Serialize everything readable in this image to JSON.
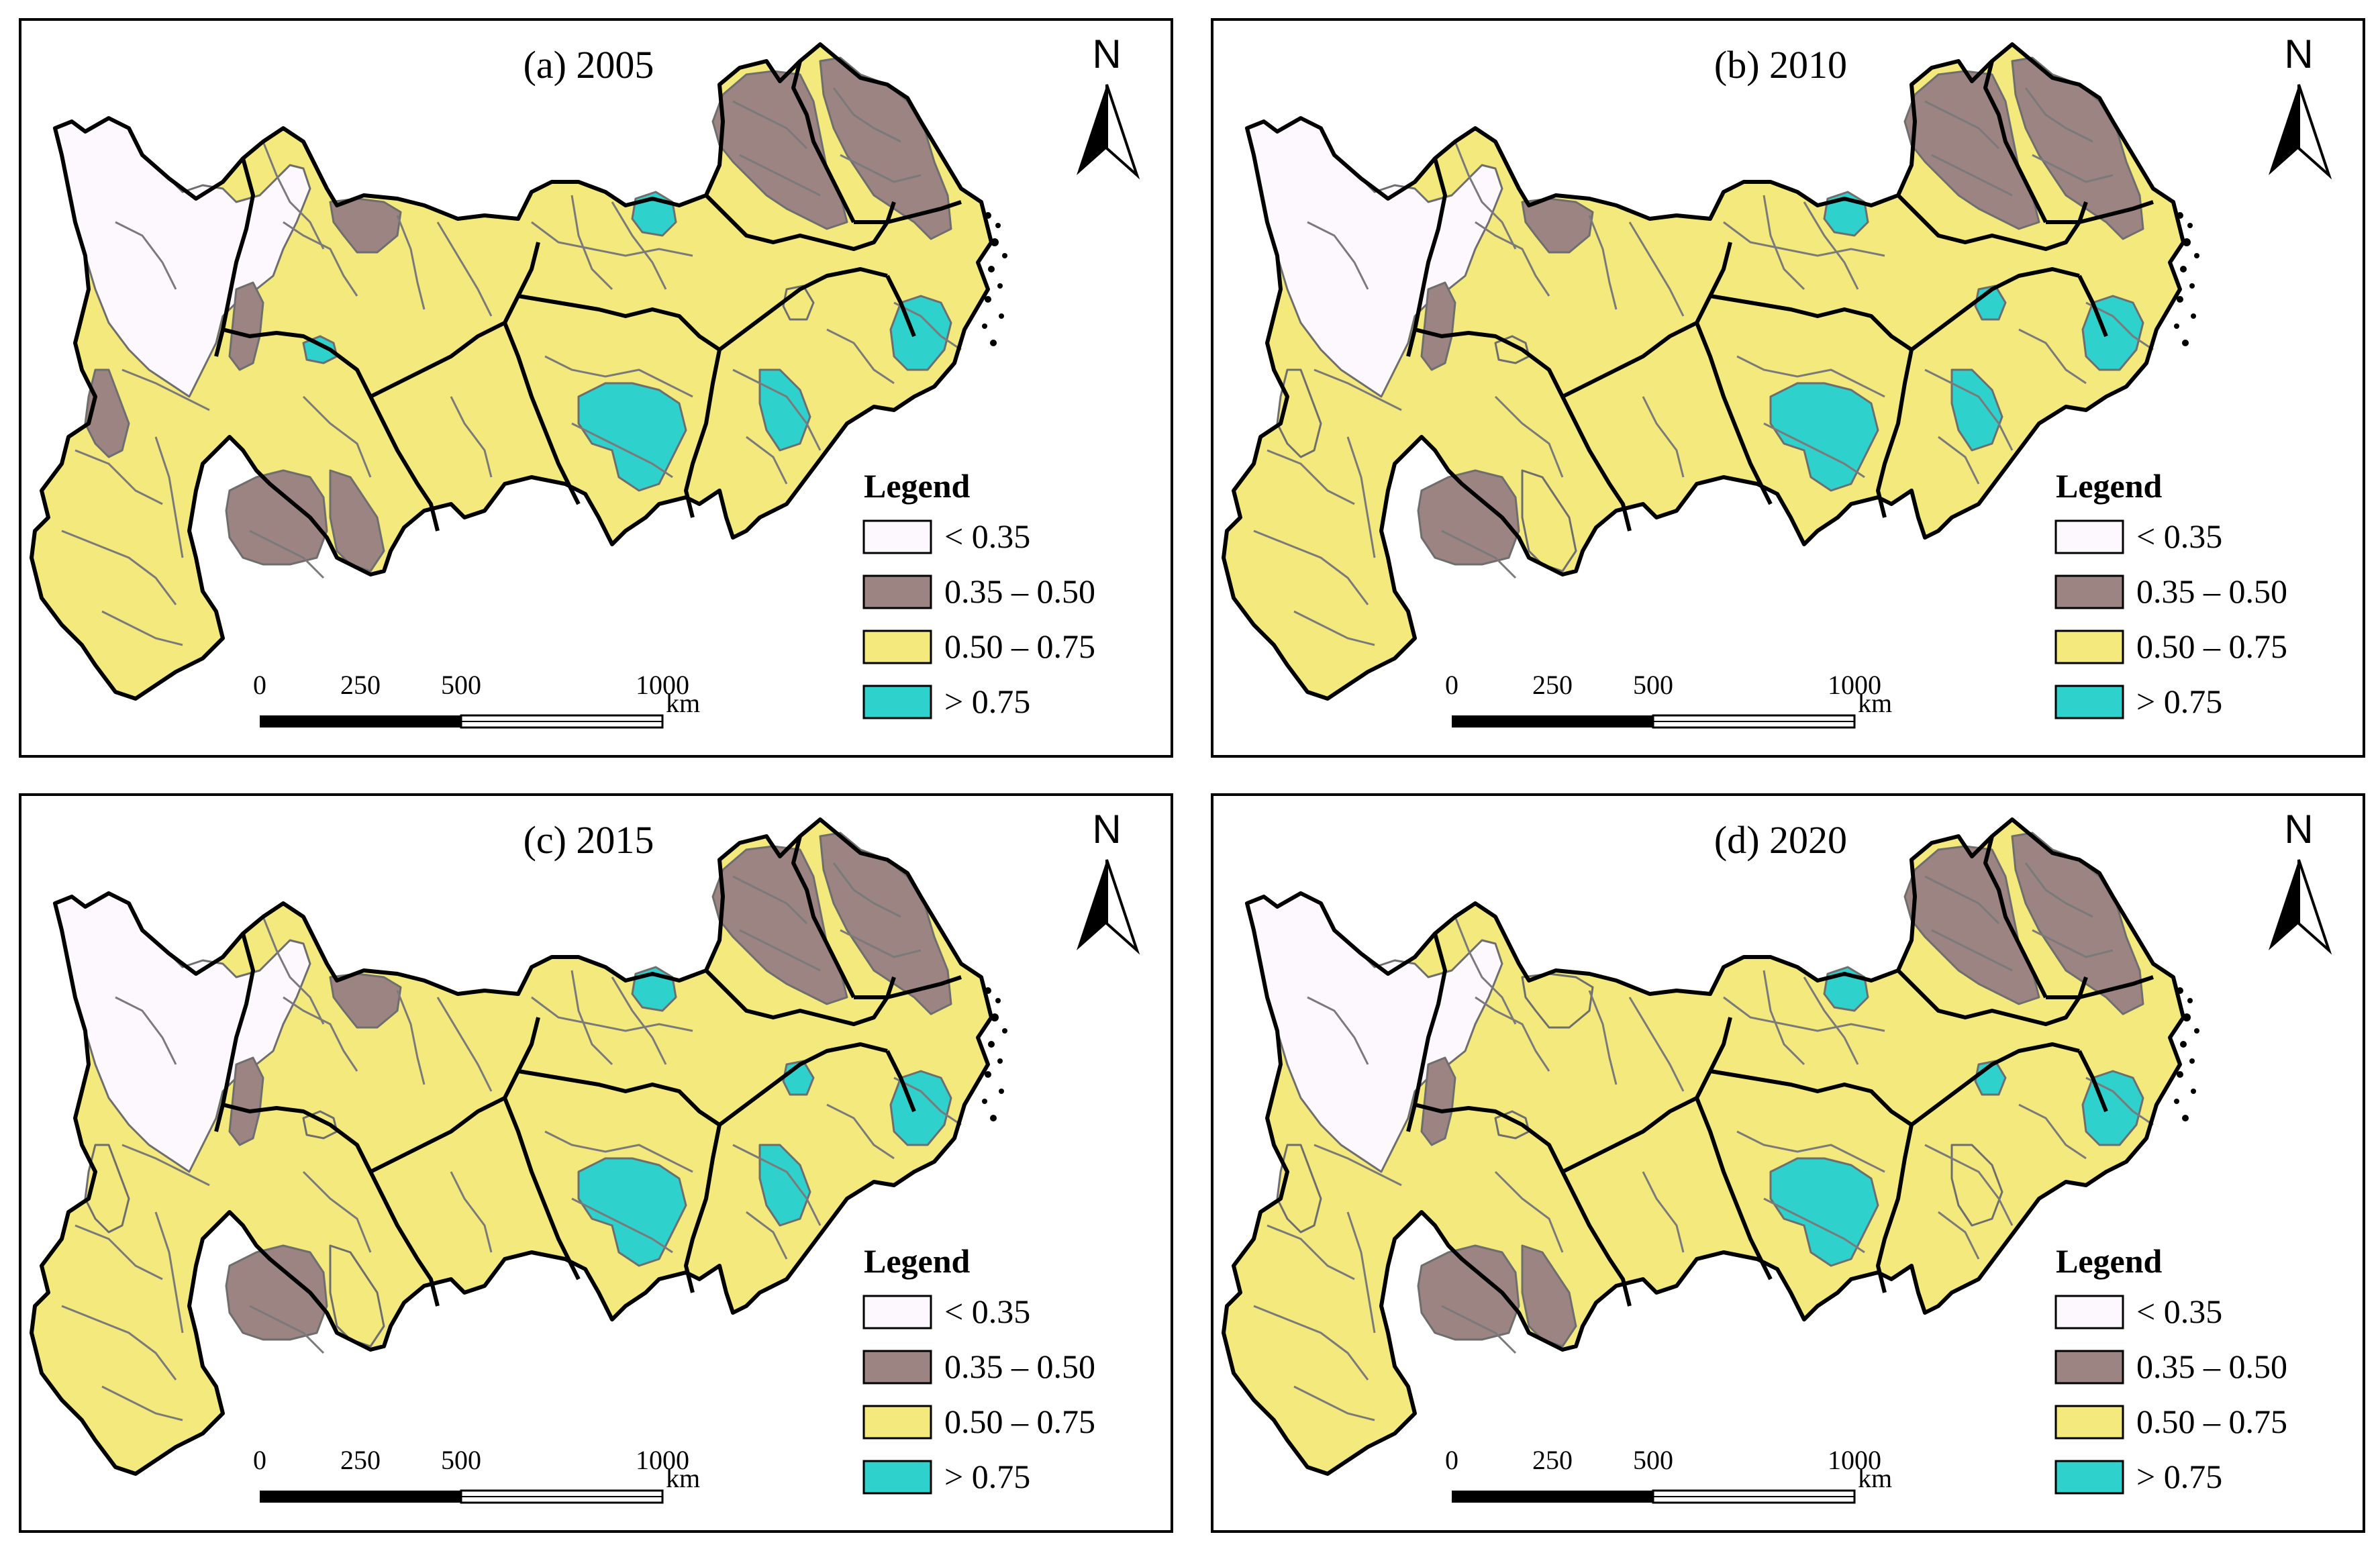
{
  "legend": {
    "title": "Legend",
    "classes": [
      {
        "label": "< 0.35",
        "color": "#fdf8fd"
      },
      {
        "label": "0.35 – 0.50",
        "color": "#9c8482"
      },
      {
        "label": "0.50 – 0.75",
        "color": "#f3e97c"
      },
      {
        "label": "> 0.75",
        "color": "#2ed1cc"
      }
    ]
  },
  "north_label": "N",
  "scale_bar": {
    "ticks": [
      "0",
      "250",
      "500",
      "1000"
    ],
    "tick_values": [
      0,
      250,
      500,
      1000
    ],
    "unit": "km"
  },
  "panels": [
    {
      "title": "(a) 2005",
      "classes": {
        "west_plateau": 0,
        "sichuan_north": 1,
        "sichuan_west_strip": 1,
        "sichuan_small_spot": 3,
        "yunnan_west_edge": 1,
        "guizhou_guangxi_border": 1,
        "guizhou_border_east": 1,
        "hubei_city": 3,
        "jiangxi_east": 3,
        "hunan_center": 3,
        "zhejiang_center": 3,
        "anhui_jiangsu": 1,
        "jiangsu_east": 1,
        "jiangxi_small": 2
      }
    },
    {
      "title": "(b) 2010",
      "classes": {
        "west_plateau": 0,
        "sichuan_north": 1,
        "sichuan_west_strip": 1,
        "sichuan_small_spot": 2,
        "yunnan_west_edge": 2,
        "guizhou_guangxi_border": 1,
        "guizhou_border_east": 2,
        "hubei_city": 3,
        "jiangxi_east": 3,
        "hunan_center": 3,
        "zhejiang_center": 3,
        "anhui_jiangsu": 1,
        "jiangsu_east": 1,
        "jiangxi_small": 3
      }
    },
    {
      "title": "(c) 2015",
      "classes": {
        "west_plateau": 0,
        "sichuan_north": 1,
        "sichuan_west_strip": 1,
        "sichuan_small_spot": 2,
        "yunnan_west_edge": 2,
        "guizhou_guangxi_border": 1,
        "guizhou_border_east": 2,
        "hubei_city": 3,
        "jiangxi_east": 3,
        "hunan_center": 3,
        "zhejiang_center": 3,
        "anhui_jiangsu": 1,
        "jiangsu_east": 1,
        "jiangxi_small": 3
      }
    },
    {
      "title": "(d) 2020",
      "classes": {
        "west_plateau": 0,
        "sichuan_north": 2,
        "sichuan_west_strip": 1,
        "sichuan_small_spot": 2,
        "yunnan_west_edge": 2,
        "guizhou_guangxi_border": 1,
        "guizhou_border_east": 1,
        "hubei_city": 3,
        "jiangxi_east": 2,
        "hunan_center": 3,
        "zhejiang_center": 3,
        "anhui_jiangsu": 1,
        "jiangsu_east": 1,
        "jiangxi_small": 3
      }
    }
  ]
}
